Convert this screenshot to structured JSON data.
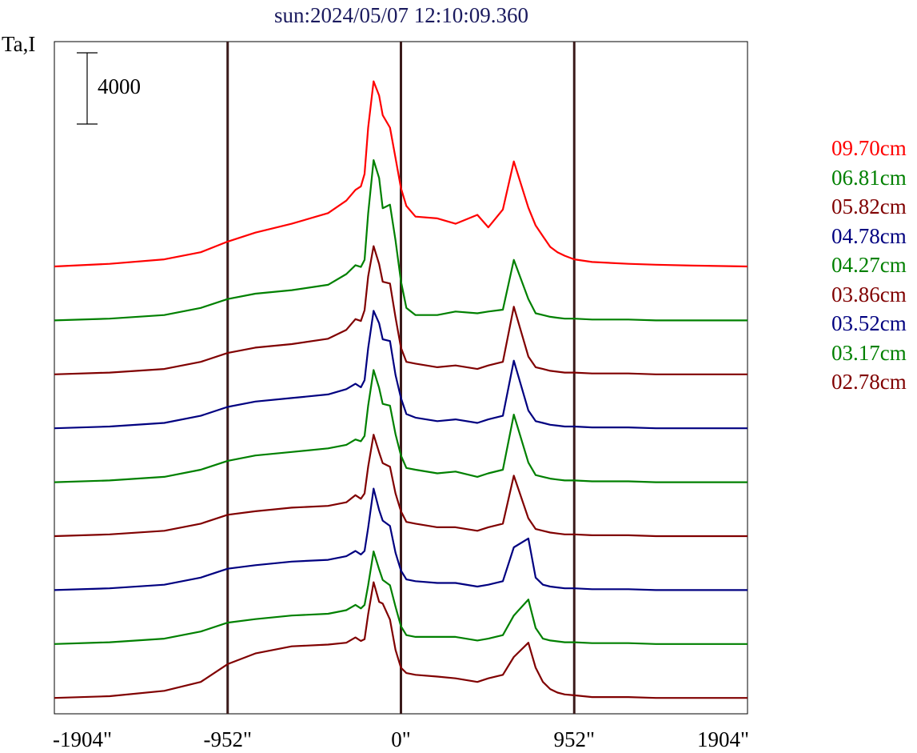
{
  "chart_data": {
    "type": "line",
    "title": "sun:2024/05/07 12:10:09.360",
    "ylabel": "Ta,I",
    "xlabel": "",
    "x_ticks": [
      "-1904\"",
      "-952\"",
      "0\"",
      "952\"",
      "1904\""
    ],
    "x_tick_values": [
      -1904,
      -952,
      0,
      952,
      1904
    ],
    "xlim": [
      -1904,
      1904
    ],
    "vertical_lines_at": [
      -952,
      0,
      952
    ],
    "scale_bar": {
      "label": "4000",
      "value": 4000
    },
    "y_axis_values_relative": "each trace offset vertically; y units = Ta,I with a 4000 scale bar",
    "x": [
      -1904,
      -1600,
      -1300,
      -1100,
      -952,
      -800,
      -600,
      -400,
      -300,
      -250,
      -220,
      -200,
      -180,
      -150,
      -120,
      -100,
      -60,
      -30,
      0,
      30,
      80,
      200,
      300,
      420,
      480,
      560,
      620,
      700,
      740,
      780,
      820,
      860,
      900,
      952,
      1050,
      1250,
      1400,
      1600,
      1904
    ],
    "series": [
      {
        "name": "09.70cm",
        "color": "#ff0000",
        "offset": 0,
        "values": [
          0,
          150,
          400,
          800,
          1400,
          1900,
          2400,
          3000,
          3700,
          4300,
          4500,
          5200,
          7800,
          10400,
          9600,
          8500,
          7800,
          6100,
          4400,
          3400,
          2800,
          2700,
          2400,
          2900,
          2200,
          3200,
          5900,
          3300,
          2300,
          1700,
          1100,
          800,
          600,
          400,
          250,
          150,
          100,
          50,
          0
        ]
      },
      {
        "name": "06.81cm",
        "color": "#008000",
        "offset": 1,
        "values": [
          0,
          100,
          300,
          700,
          1200,
          1500,
          1700,
          2000,
          2600,
          3100,
          3000,
          3400,
          6000,
          9000,
          8000,
          6300,
          6500,
          4500,
          2200,
          700,
          300,
          300,
          500,
          400,
          500,
          600,
          3400,
          1200,
          400,
          300,
          200,
          150,
          100,
          100,
          50,
          50,
          0,
          0,
          0
        ]
      },
      {
        "name": "05.82cm",
        "color": "#800000",
        "offset": 2,
        "values": [
          0,
          100,
          300,
          700,
          1200,
          1500,
          1700,
          2000,
          2500,
          3100,
          3000,
          3600,
          5500,
          7200,
          6200,
          5200,
          5100,
          3200,
          1500,
          700,
          600,
          400,
          500,
          300,
          500,
          700,
          3800,
          1000,
          400,
          300,
          200,
          150,
          100,
          100,
          50,
          50,
          0,
          0,
          0
        ]
      },
      {
        "name": "04.78cm",
        "color": "#000080",
        "offset": 3,
        "values": [
          0,
          100,
          300,
          700,
          1200,
          1500,
          1700,
          1900,
          2200,
          2500,
          2300,
          2700,
          4500,
          6600,
          5900,
          5000,
          4900,
          3000,
          1700,
          800,
          600,
          400,
          500,
          300,
          500,
          700,
          3800,
          1000,
          400,
          300,
          200,
          150,
          100,
          100,
          50,
          50,
          0,
          0,
          0
        ]
      },
      {
        "name": "04.27cm",
        "color": "#008000",
        "offset": 4,
        "values": [
          0,
          100,
          300,
          700,
          1200,
          1500,
          1700,
          1900,
          2100,
          2400,
          2300,
          2600,
          4300,
          6300,
          5300,
          4400,
          4300,
          2700,
          1500,
          800,
          700,
          500,
          600,
          300,
          500,
          700,
          3800,
          1100,
          400,
          300,
          200,
          150,
          100,
          100,
          50,
          50,
          0,
          0,
          0
        ]
      },
      {
        "name": "03.86cm",
        "color": "#800000",
        "offset": 5,
        "values": [
          0,
          100,
          300,
          700,
          1200,
          1400,
          1600,
          1700,
          1900,
          2300,
          2100,
          2400,
          3900,
          5700,
          4700,
          4100,
          3900,
          2400,
          1400,
          800,
          700,
          500,
          500,
          300,
          500,
          700,
          3400,
          1000,
          400,
          300,
          200,
          150,
          100,
          100,
          50,
          50,
          0,
          0,
          0
        ]
      },
      {
        "name": "03.52cm",
        "color": "#000080",
        "offset": 6,
        "values": [
          0,
          100,
          300,
          700,
          1200,
          1400,
          1600,
          1700,
          1900,
          2200,
          2000,
          2200,
          3500,
          5700,
          4500,
          3900,
          3600,
          2100,
          1100,
          600,
          500,
          400,
          400,
          200,
          300,
          500,
          2400,
          2900,
          700,
          300,
          200,
          150,
          100,
          100,
          50,
          50,
          0,
          0,
          0
        ]
      },
      {
        "name": "03.17cm",
        "color": "#008000",
        "offset": 7,
        "values": [
          0,
          100,
          300,
          700,
          1200,
          1400,
          1600,
          1700,
          1900,
          2200,
          2000,
          2200,
          3300,
          5200,
          4200,
          3600,
          3300,
          2100,
          1000,
          500,
          400,
          400,
          400,
          200,
          300,
          500,
          1600,
          2500,
          900,
          300,
          200,
          150,
          100,
          100,
          50,
          50,
          0,
          0,
          0
        ]
      },
      {
        "name": "02.78cm",
        "color": "#800000",
        "offset": 8,
        "values": [
          0,
          100,
          400,
          900,
          1900,
          2500,
          2900,
          3000,
          3100,
          3400,
          3200,
          3300,
          4700,
          6500,
          5400,
          5300,
          4400,
          2700,
          1700,
          1400,
          1300,
          1200,
          1100,
          900,
          1100,
          1300,
          2300,
          3100,
          1700,
          900,
          500,
          300,
          200,
          150,
          50,
          50,
          0,
          0,
          0
        ]
      }
    ]
  }
}
